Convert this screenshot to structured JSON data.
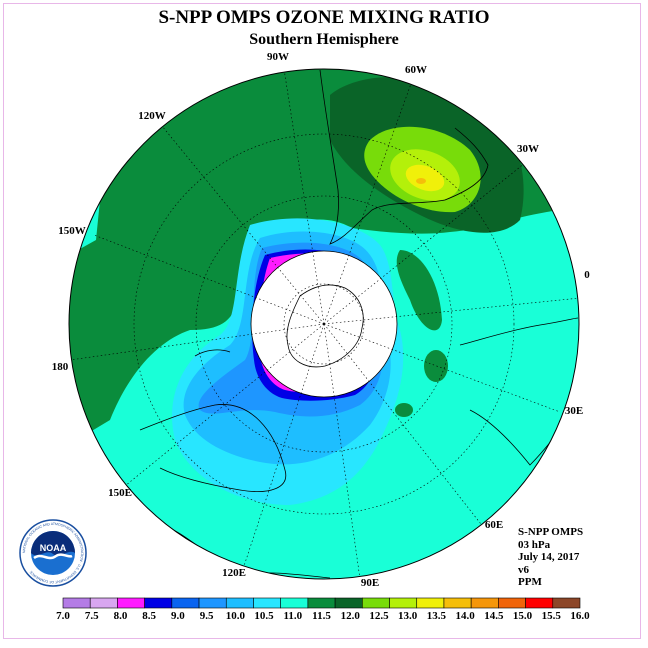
{
  "title": "S-NPP OMPS OZONE MIXING RATIO",
  "subtitle": "Southern Hemisphere",
  "longitude_labels": {
    "w90": "90W",
    "w60": "60W",
    "w120": "120W",
    "w30": "30W",
    "w150": "150W",
    "e0": "0",
    "e180": "180",
    "e30": "30E",
    "e150": "150E",
    "e60": "60E",
    "e120": "120E",
    "e90": "90E"
  },
  "info": {
    "instrument": "S-NPP OMPS",
    "level": "03 hPa",
    "date": "July 14, 2017",
    "version": "v6",
    "unit": "PPM"
  },
  "logo": {
    "text": "NOAA",
    "ring_text": "NATIONAL OCEANIC AND ATMOSPHERIC ADMINISTRATION · U.S. DEPARTMENT OF COMMERCE"
  },
  "colorbar": {
    "ticks": [
      "7.0",
      "7.5",
      "8.0",
      "8.5",
      "9.0",
      "9.5",
      "10.0",
      "10.5",
      "11.0",
      "11.5",
      "12.0",
      "12.5",
      "13.0",
      "13.5",
      "14.0",
      "14.5",
      "15.0",
      "15.5",
      "16.0"
    ],
    "colors": [
      "#b47ce6",
      "#d8a6f0",
      "#ff1aff",
      "#0000e6",
      "#0a64f0",
      "#1e96ff",
      "#1ebeff",
      "#28e6ff",
      "#19ffd7",
      "#0a8c3c",
      "#0a6428",
      "#78dc0a",
      "#b4f00a",
      "#f0f00a",
      "#f5be0a",
      "#f5960a",
      "#f0640a",
      "#ff0000",
      "#8c4628"
    ]
  },
  "colors": {
    "dark_green": "#0a6428",
    "mid_green": "#0a8c3c",
    "aqua": "#19ffd7",
    "cyan": "#28e6ff",
    "light_blue": "#1ebeff",
    "blue": "#1e96ff",
    "navy": "#0000e6",
    "magenta": "#ff1aff",
    "lime": "#78dc0a",
    "yellow_green": "#b4f00a",
    "yellow": "#f0f00a",
    "orange": "#f5be0a"
  }
}
